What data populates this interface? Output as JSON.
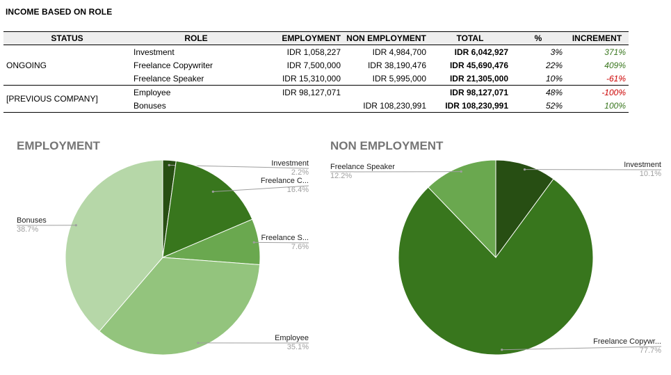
{
  "title": "INCOME BASED ON ROLE",
  "table": {
    "headers": [
      "STATUS",
      "ROLE",
      "EMPLOYMENT",
      "NON EMPLOYMENT",
      "TOTAL",
      "%",
      "INCREMENT"
    ],
    "groups": [
      {
        "status": "ONGOING",
        "rows": [
          {
            "role": "Investment",
            "employment": "IDR 1,058,227",
            "non_employment": "IDR 4,984,700",
            "total": "IDR 6,042,927",
            "pct": "3%",
            "increment": "371%",
            "trend": "pos"
          },
          {
            "role": "Freelance Copywriter",
            "employment": "IDR 7,500,000",
            "non_employment": "IDR 38,190,476",
            "total": "IDR 45,690,476",
            "pct": "22%",
            "increment": "409%",
            "trend": "pos"
          },
          {
            "role": "Freelance Speaker",
            "employment": "IDR 15,310,000",
            "non_employment": "IDR 5,995,000",
            "total": "IDR 21,305,000",
            "pct": "10%",
            "increment": "-61%",
            "trend": "neg"
          }
        ]
      },
      {
        "status": "[PREVIOUS COMPANY]",
        "rows": [
          {
            "role": "Employee",
            "employment": "IDR 98,127,071",
            "non_employment": "",
            "total": "IDR 98,127,071",
            "pct": "48%",
            "increment": "-100%",
            "trend": "neg"
          },
          {
            "role": "Bonuses",
            "employment": "",
            "non_employment": "IDR 108,230,991",
            "total": "IDR 108,230,991",
            "pct": "52%",
            "increment": "100%",
            "trend": "pos"
          }
        ]
      }
    ]
  },
  "chart_data": [
    {
      "type": "pie",
      "title": "EMPLOYMENT",
      "slices": [
        {
          "label": "Investment",
          "label_display": "Investment",
          "value": 2.2,
          "pct_label": "2.2%",
          "color": "#274e13"
        },
        {
          "label": "Freelance Copywriter",
          "label_display": "Freelance C...",
          "value": 16.4,
          "pct_label": "16.4%",
          "color": "#38761d"
        },
        {
          "label": "Freelance Speaker",
          "label_display": "Freelance S...",
          "value": 7.6,
          "pct_label": "7.6%",
          "color": "#6aa84f"
        },
        {
          "label": "Employee",
          "label_display": "Employee",
          "value": 35.1,
          "pct_label": "35.1%",
          "color": "#93c47d"
        },
        {
          "label": "Bonuses",
          "label_display": "Bonuses",
          "value": 38.7,
          "pct_label": "38.7%",
          "color": "#b6d7a8"
        }
      ]
    },
    {
      "type": "pie",
      "title": "NON EMPLOYMENT",
      "slices": [
        {
          "label": "Investment",
          "label_display": "Investment",
          "value": 10.1,
          "pct_label": "10.1%",
          "color": "#274e13"
        },
        {
          "label": "Freelance Copywriter",
          "label_display": "Freelance Copywr...",
          "value": 77.7,
          "pct_label": "77.7%",
          "color": "#38761d"
        },
        {
          "label": "Freelance Speaker",
          "label_display": "Freelance Speaker",
          "value": 12.2,
          "pct_label": "12.2%",
          "color": "#6aa84f"
        }
      ]
    }
  ]
}
